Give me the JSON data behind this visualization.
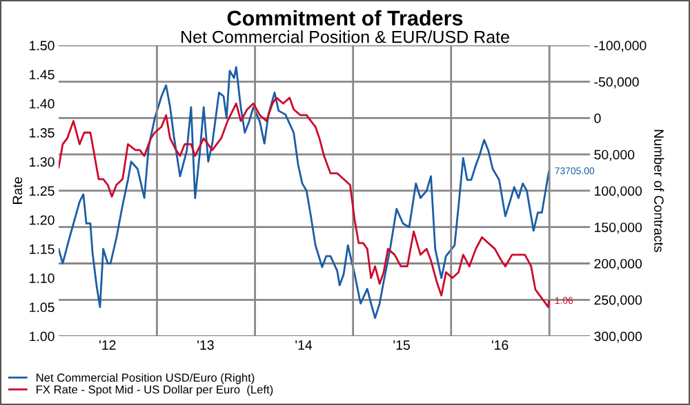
{
  "chart_data": {
    "type": "line",
    "title": "Commitment of Traders",
    "subtitle": "Net Commercial Position & EUR/USD Rate",
    "ylabel": "Rate",
    "y2label": "Number of Contracts",
    "xlim": [
      "2012-01-01",
      "2017-06-01"
    ],
    "xticks": [
      {
        "value": "2013-01-01",
        "label": null
      },
      {
        "value": "2014-01-01",
        "label": null
      },
      {
        "value": "2015-01-01",
        "label": null
      },
      {
        "value": "2016-01-01",
        "label": null
      },
      {
        "value": "2017-01-01",
        "label": null
      },
      {
        "value": "2012-07-01",
        "label": "'12"
      },
      {
        "value": "2013-07-01",
        "label": "'13"
      },
      {
        "value": "2014-07-01",
        "label": "'14"
      },
      {
        "value": "2015-07-01",
        "label": "'15"
      },
      {
        "value": "2016-07-01",
        "label": "'16"
      }
    ],
    "ylim": [
      1.0,
      1.5
    ],
    "yticks": [
      {
        "value": 1.0,
        "label": "1.00"
      },
      1.05,
      {
        "value": 1.1,
        "label": "1.10"
      },
      1.15,
      {
        "value": 1.2,
        "label": "1.20"
      },
      1.25,
      {
        "value": 1.3,
        "label": "1.30"
      },
      1.35,
      {
        "value": 1.4,
        "label": "1.40"
      },
      1.45,
      {
        "value": 1.5,
        "label": "1.50"
      }
    ],
    "y2lim": [
      300000,
      -100000
    ],
    "y2ticks": [
      {
        "value": 300000,
        "label": "300,000"
      },
      {
        "value": 250000,
        "label": "250,000"
      },
      {
        "value": 200000,
        "label": "200,000"
      },
      {
        "value": 150000,
        "label": "150,000"
      },
      {
        "value": 100000,
        "label": "100,000"
      },
      {
        "value": 50000,
        "label": "50,000"
      },
      0,
      {
        "value": -50000,
        "label": "-50,000"
      },
      {
        "value": -100000,
        "label": "-100,000"
      }
    ],
    "grid": true,
    "legend": "bottom left",
    "marker": "none",
    "line_style": "solid",
    "series": [
      {
        "name": "Net Commercial Position USD/Euro (Right)",
        "color": "#1a5da6",
        "axis": "y2",
        "x": [
          "2012-01-01",
          "2012-01-16",
          "2012-02-10",
          "2012-03-04",
          "2012-03-19",
          "2012-04-02",
          "2012-04-13",
          "2012-04-28",
          "2012-05-06",
          "2012-05-21",
          "2012-06-03",
          "2012-06-15",
          "2012-07-02",
          "2012-07-12",
          "2012-08-03",
          "2012-08-26",
          "2012-09-15",
          "2012-09-27",
          "2012-10-21",
          "2012-11-15",
          "2012-12-01",
          "2012-12-24",
          "2013-01-18",
          "2013-02-04",
          "2013-02-19",
          "2013-03-05",
          "2013-03-28",
          "2013-04-22",
          "2013-05-08",
          "2013-05-23",
          "2013-06-09",
          "2013-06-24",
          "2013-07-11",
          "2013-07-26",
          "2013-08-20",
          "2013-09-06",
          "2013-09-17",
          "2013-09-29",
          "2013-10-15",
          "2013-10-23",
          "2013-11-09",
          "2013-11-24",
          "2013-12-10",
          "2013-12-26",
          "2014-01-19",
          "2014-02-05",
          "2014-02-20",
          "2014-03-15",
          "2014-03-30",
          "2014-04-24",
          "2014-05-25",
          "2014-06-11",
          "2014-06-26",
          "2014-07-12",
          "2014-07-28",
          "2014-08-14",
          "2014-09-08",
          "2014-09-23",
          "2014-10-09",
          "2014-11-03",
          "2014-11-12",
          "2014-11-27",
          "2014-12-13",
          "2015-01-07",
          "2015-01-29",
          "2015-02-23",
          "2015-03-09",
          "2015-03-24",
          "2015-04-10",
          "2015-04-25",
          "2015-05-19",
          "2015-06-12",
          "2015-07-06",
          "2015-07-29",
          "2015-08-23",
          "2015-09-09",
          "2015-10-02",
          "2015-10-18",
          "2015-11-03",
          "2015-11-26",
          "2015-12-13",
          "2016-01-14",
          "2016-01-29",
          "2016-02-15",
          "2016-03-01",
          "2016-03-16",
          "2016-04-02",
          "2016-04-17",
          "2016-05-03",
          "2016-05-19",
          "2016-06-04",
          "2016-06-28",
          "2016-07-21",
          "2016-08-07",
          "2016-08-23",
          "2016-09-08",
          "2016-09-24",
          "2016-10-09",
          "2016-11-03",
          "2016-11-19",
          "2016-12-04",
          "2016-12-20",
          "2016-12-30"
        ],
        "values": [
          180000,
          200000,
          165000,
          135000,
          115000,
          105000,
          145000,
          145000,
          185000,
          230000,
          260000,
          180000,
          200000,
          200000,
          165000,
          120000,
          85000,
          60000,
          70000,
          110000,
          40000,
          0,
          -30000,
          -45000,
          -15000,
          25000,
          80000,
          45000,
          -15000,
          110000,
          50000,
          -15000,
          60000,
          35000,
          -35000,
          -30000,
          0,
          -65000,
          -55000,
          -70000,
          -15000,
          20000,
          5000,
          -15000,
          5000,
          35000,
          -5000,
          -35000,
          -10000,
          -5000,
          20000,
          65000,
          90000,
          100000,
          135000,
          175000,
          205000,
          190000,
          190000,
          210000,
          230000,
          215000,
          175000,
          215000,
          255000,
          235000,
          255000,
          275000,
          255000,
          225000,
          180000,
          125000,
          145000,
          150000,
          90000,
          110000,
          100000,
          80000,
          180000,
          220000,
          190000,
          175000,
          120000,
          55000,
          85000,
          85000,
          65000,
          50000,
          30000,
          45000,
          70000,
          85000,
          135000,
          115000,
          95000,
          110000,
          90000,
          100000,
          155000,
          130000,
          130000,
          95000,
          73705
        ],
        "value_labels": [
          null,
          null,
          null,
          null,
          null,
          null,
          null,
          null,
          null,
          null,
          null,
          null,
          null,
          null,
          null,
          null,
          null,
          null,
          null,
          null,
          null,
          null,
          null,
          null,
          null,
          null,
          null,
          null,
          null,
          null,
          null,
          null,
          null,
          null,
          null,
          null,
          null,
          null,
          null,
          null,
          null,
          null,
          null,
          null,
          null,
          null,
          null,
          null,
          null,
          null,
          null,
          null,
          null,
          null,
          null,
          null,
          null,
          null,
          null,
          null,
          null,
          null,
          null,
          null,
          null,
          null,
          null,
          null,
          null,
          null,
          null,
          null,
          null,
          null,
          null,
          null,
          null,
          null,
          null,
          null,
          null,
          null,
          null,
          null,
          null,
          null,
          null,
          null,
          null,
          null,
          null,
          null,
          null,
          null,
          null,
          null,
          null,
          null,
          null,
          null,
          null,
          null,
          "73705.00"
        ]
      },
      {
        "name": "FX Rate - Spot Mid - US Dollar per Euro  (Left)",
        "color": "#cc0a2a",
        "axis": "y",
        "x": [
          "2012-01-01",
          "2012-01-16",
          "2012-02-02",
          "2012-02-25",
          "2012-03-19",
          "2012-04-05",
          "2012-04-28",
          "2012-05-06",
          "2012-05-29",
          "2012-06-15",
          "2012-07-02",
          "2012-07-17",
          "2012-08-03",
          "2012-08-26",
          "2012-09-15",
          "2012-10-13",
          "2012-10-29",
          "2012-11-15",
          "2012-12-09",
          "2012-12-24",
          "2013-01-18",
          "2013-02-04",
          "2013-02-19",
          "2013-03-13",
          "2013-03-28",
          "2013-04-14",
          "2013-05-08",
          "2013-05-23",
          "2013-06-24",
          "2013-07-26",
          "2013-08-28",
          "2013-09-21",
          "2013-10-23",
          "2013-11-09",
          "2013-12-03",
          "2013-12-26",
          "2014-01-19",
          "2014-02-13",
          "2014-03-07",
          "2014-03-22",
          "2014-04-16",
          "2014-05-10",
          "2014-05-25",
          "2014-06-19",
          "2014-07-12",
          "2014-07-28",
          "2014-08-14",
          "2014-08-29",
          "2014-09-15",
          "2014-10-09",
          "2014-11-03",
          "2014-11-27",
          "2014-12-21",
          "2015-01-07",
          "2015-01-22",
          "2015-02-08",
          "2015-02-23",
          "2015-03-09",
          "2015-03-24",
          "2015-04-10",
          "2015-04-25",
          "2015-05-11",
          "2015-06-05",
          "2015-06-28",
          "2015-07-22",
          "2015-08-15",
          "2015-09-09",
          "2015-10-02",
          "2015-10-18",
          "2015-11-11",
          "2015-11-26",
          "2015-12-13",
          "2016-01-06",
          "2016-01-29",
          "2016-02-15",
          "2016-03-09",
          "2016-04-02",
          "2016-04-25",
          "2016-05-19",
          "2016-06-12",
          "2016-07-06",
          "2016-07-21",
          "2016-08-15",
          "2016-09-08",
          "2016-10-02",
          "2016-10-25",
          "2016-11-10",
          "2016-11-26",
          "2016-12-12",
          "2016-12-28",
          "2016-12-30"
        ],
        "values": [
          1.29,
          1.33,
          1.34,
          1.37,
          1.33,
          1.35,
          1.35,
          1.33,
          1.27,
          1.27,
          1.26,
          1.24,
          1.26,
          1.27,
          1.33,
          1.32,
          1.32,
          1.31,
          1.34,
          1.35,
          1.36,
          1.38,
          1.34,
          1.32,
          1.31,
          1.33,
          1.33,
          1.31,
          1.34,
          1.32,
          1.34,
          1.37,
          1.4,
          1.37,
          1.39,
          1.4,
          1.38,
          1.37,
          1.4,
          1.41,
          1.4,
          1.41,
          1.39,
          1.38,
          1.38,
          1.37,
          1.36,
          1.34,
          1.31,
          1.28,
          1.28,
          1.27,
          1.26,
          1.2,
          1.16,
          1.16,
          1.15,
          1.1,
          1.12,
          1.09,
          1.11,
          1.15,
          1.14,
          1.12,
          1.12,
          1.18,
          1.14,
          1.15,
          1.13,
          1.09,
          1.07,
          1.11,
          1.1,
          1.11,
          1.14,
          1.12,
          1.15,
          1.17,
          1.16,
          1.15,
          1.13,
          1.12,
          1.14,
          1.14,
          1.14,
          1.12,
          1.08,
          1.07,
          1.06,
          1.05,
          1.06
        ],
        "value_labels": [
          null,
          null,
          null,
          null,
          null,
          null,
          null,
          null,
          null,
          null,
          null,
          null,
          null,
          null,
          null,
          null,
          null,
          null,
          null,
          null,
          null,
          null,
          null,
          null,
          null,
          null,
          null,
          null,
          null,
          null,
          null,
          null,
          null,
          null,
          null,
          null,
          null,
          null,
          null,
          null,
          null,
          null,
          null,
          null,
          null,
          null,
          null,
          null,
          null,
          null,
          null,
          null,
          null,
          null,
          null,
          null,
          null,
          null,
          null,
          null,
          null,
          null,
          null,
          null,
          null,
          null,
          null,
          null,
          null,
          null,
          null,
          null,
          null,
          null,
          null,
          null,
          null,
          null,
          null,
          null,
          null,
          null,
          null,
          null,
          null,
          null,
          null,
          null,
          null,
          null,
          "1.06"
        ]
      }
    ]
  }
}
